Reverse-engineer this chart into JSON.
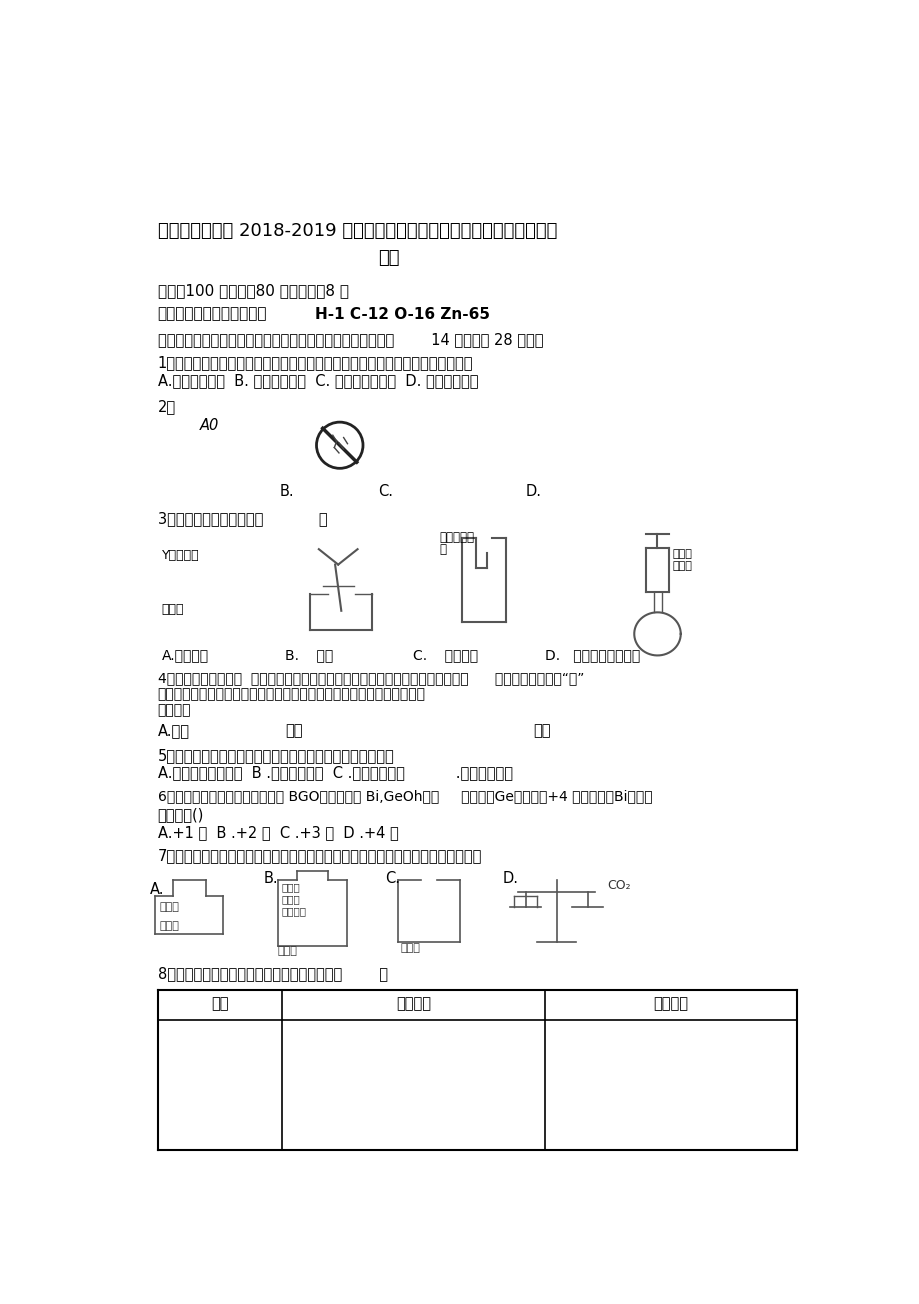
{
  "background_color": "#ffffff",
  "title_line1": "廉江市实验学校 2018-2019 学年度第一学期期末考试试题初三化学（优秀",
  "title_line2": "班）",
  "info_line1": "分值：100 分时间：80 分钟页数：8 页",
  "info_line2_prefix": "可能需要的相对原子质量：",
  "info_line2_bold": "H-1 C-12 O-16 Zn-65",
  "section1": "、选择题（在下列四个选项中只有一个选项符合题意。本大题        14 小题，共 28 分。）",
  "q1": "1、物质是变化的，我们生活在多姿多彩的物质世界里，下列属于物理变化是（）",
  "q1_opts": "A.白雪缓慢消融  B. 葡萄酿成红酒  C. 氨水使酚酞变红  D. 铜器锈蚀变绿",
  "q2": "2、",
  "q2_sub": "A0",
  "q2_labels": [
    "B.",
    "C.",
    "D."
  ],
  "q3": "3、下列实验操作正确的是            ）",
  "q3_label1": "Y－稀盐酸",
  "q3_label2": "「镁条",
  "q3_label3": "带火星的本",
  "q3_label4": "条",
  "q3_label5": "过氧化",
  "q3_label6": "氢溶液",
  "q3_answers": [
    "A.滴加液体",
    "B.    过滤",
    "C.    验满氧气",
    "D.   过氧化氢制取氧气"
  ],
  "q4_line1": "4、我国是燃煤大国，  烟道气体脱硫是治理燃煤带来的环境污染的重要措施之一。      烟道气体脱硫中的",
  "q4_line1b": "硫",
  "q4_line2": "认识各种标志是生活必须常识之一。下列图标中与燃烧和爆炸无关的是（",
  "q4_line3": "指的是（",
  "q4_opt1": "A.单质",
  "q4_opt2": "元素",
  "q4_opt3": "离子",
  "q5": "5、下列各组物质中，前者属于纯净物、后者属于混合物的是",
  "q5_opts": "A.二氧化碳、蒸镏水  B .铁矿石、空气  C .氢气、硫酸铜           .液氮、稀盐酸",
  "q6_line1": "6、我国研制的一种闪烁晶体材料 BGO（化学式为 Bi,GeOh），     其中错（Ge）元素为+4 价，则州（Bi）元素",
  "q6_line2": "化合价为()",
  "q6_opts": "A.+1 价  B .+2 价  C .+3 价  D .+4 价",
  "q7": "7、如图所示的有关二氧化碳性质的实验中，只能证明二氧化碳的物理性质的是（）",
  "q7_A": "A.",
  "q7_B": "B.",
  "q7_C": "C.",
  "q7_D": "D.",
  "q7_label_xiansuansuan": "稀盐酸",
  "q7_label_shihuis": "石灰石",
  "q7_label_kuangquanshui": "矿泉水",
  "q7_label_suliaoping": "塑料瓶",
  "q7_label_eryanhuatan": "二氧化碳",
  "q7_label_shihuishui": "石灰水",
  "q7_label_zhengsiye": "蒸试液",
  "q7_label_co2": "CO₂",
  "q8": "8、下列客观事实对应的微观解释不正确的是（        ）",
  "table_headers": [
    "选项",
    "客观事实",
    "微观解释"
  ],
  "font_color": "#000000"
}
